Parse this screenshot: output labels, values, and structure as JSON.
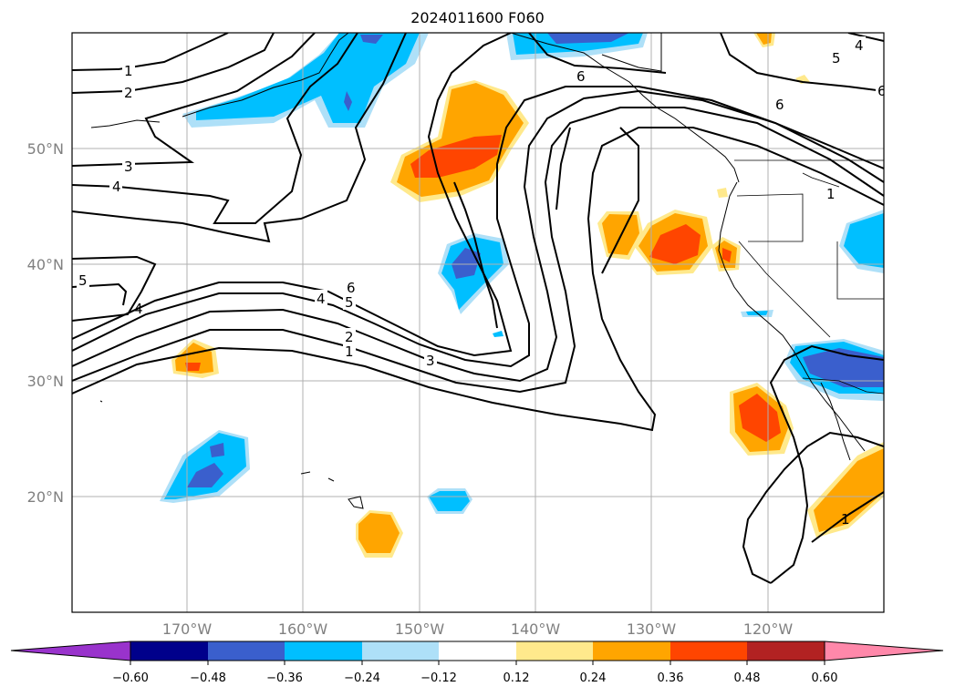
{
  "title": "2024011600 F060",
  "latitude_labels": [
    "50°N",
    "40°N",
    "30°N",
    "20°N"
  ],
  "longitude_labels": [
    "170°W",
    "160°W",
    "150°W",
    "140°W",
    "130°W",
    "120°W"
  ],
  "colorbar": {
    "tick_labels": [
      "−0.60",
      "−0.48",
      "−0.36",
      "−0.24",
      "−0.12",
      "0.12",
      "0.24",
      "0.36",
      "0.48",
      "0.60"
    ],
    "colors": [
      "#9933cc",
      "#00008b",
      "#3a5fcd",
      "#00bfff",
      "#aee0f8",
      "#ffffff",
      "#ffe98c",
      "#ffa500",
      "#ff4500",
      "#b22222",
      "#ff88aa"
    ]
  },
  "contour_labels": [
    "1",
    "2",
    "3",
    "4",
    "5",
    "6"
  ],
  "map_features": [
    "coastlines",
    "country borders",
    "state borders",
    "lat/lon gridlines"
  ]
}
